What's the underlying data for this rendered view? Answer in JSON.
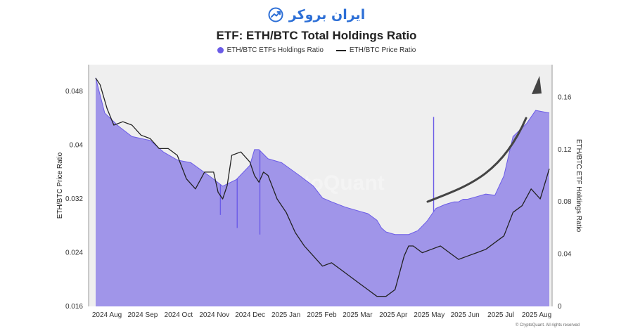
{
  "brand": {
    "name": "ایران بروکر",
    "logo_icon": "chart-arrow-logo-icon"
  },
  "footer": {
    "credit": "© CryptoQuant. All rights reserved"
  },
  "watermark": "CryptoQuant",
  "chart_data": {
    "type": "area",
    "title": "ETF: ETH/BTC Total Holdings Ratio",
    "ylabel_left": "ETH/BTC Price Ratio",
    "ylabel_right": "ETH/BTC ETF Holdings Ratio",
    "ylim_left": [
      0.016,
      0.052
    ],
    "ylim_right": [
      0,
      0.185
    ],
    "yticks_left": [
      "0.016",
      "0.024",
      "0.032",
      "0.04",
      "0.048"
    ],
    "yticks_right": [
      "0",
      "0.04",
      "0.08",
      "0.12",
      "0.16"
    ],
    "xticks": [
      "2024 Aug",
      "2024 Sep",
      "2024 Oct",
      "2024 Nov",
      "2024 Dec",
      "2025 Jan",
      "2025 Feb",
      "2025 Mar",
      "2025 Apr",
      "2025 May",
      "2025 Jun",
      "2025 Jul",
      "2025 Aug"
    ],
    "grid": false,
    "legend_position": "top-center",
    "colors": {
      "holdings": "#6b5ce7",
      "holdings_fill": "#a095e9",
      "price": "#222222",
      "plot_bg": "#efefef",
      "arrow": "#444444"
    },
    "annotation": "upward trend arrow",
    "series": [
      {
        "name": "ETH/BTC ETFs Holdings Ratio",
        "axis": "right",
        "x": [
          0,
          0.02,
          0.05,
          0.08,
          0.12,
          0.15,
          0.18,
          0.21,
          0.25,
          0.28,
          0.31,
          0.34,
          0.35,
          0.36,
          0.38,
          0.41,
          0.45,
          0.48,
          0.5,
          0.52,
          0.55,
          0.58,
          0.6,
          0.62,
          0.63,
          0.64,
          0.66,
          0.69,
          0.71,
          0.73,
          0.75,
          0.77,
          0.79,
          0.8,
          0.81,
          0.82,
          0.84,
          0.86,
          0.88,
          0.9,
          0.92,
          0.95,
          0.97,
          1.0
        ],
        "values": [
          0.175,
          0.148,
          0.138,
          0.13,
          0.127,
          0.118,
          0.112,
          0.11,
          0.1,
          0.092,
          0.097,
          0.108,
          0.12,
          0.12,
          0.113,
          0.11,
          0.1,
          0.092,
          0.083,
          0.08,
          0.076,
          0.073,
          0.071,
          0.066,
          0.06,
          0.057,
          0.055,
          0.055,
          0.058,
          0.065,
          0.075,
          0.078,
          0.08,
          0.08,
          0.082,
          0.082,
          0.084,
          0.086,
          0.085,
          0.1,
          0.13,
          0.14,
          0.15,
          0.148
        ],
        "spikes": [
          {
            "x": 0.275,
            "value": 0.07
          },
          {
            "x": 0.312,
            "value": 0.06
          },
          {
            "x": 0.362,
            "value": 0.055
          },
          {
            "x": 0.67,
            "value": 0.055
          },
          {
            "x": 0.745,
            "value": 0.145
          }
        ]
      },
      {
        "name": "ETH/BTC Price Ratio",
        "axis": "left",
        "x": [
          0,
          0.01,
          0.025,
          0.04,
          0.06,
          0.08,
          0.1,
          0.12,
          0.14,
          0.16,
          0.18,
          0.2,
          0.22,
          0.24,
          0.26,
          0.27,
          0.28,
          0.29,
          0.3,
          0.32,
          0.34,
          0.35,
          0.36,
          0.37,
          0.38,
          0.4,
          0.42,
          0.44,
          0.46,
          0.48,
          0.5,
          0.52,
          0.54,
          0.56,
          0.58,
          0.6,
          0.62,
          0.64,
          0.66,
          0.68,
          0.69,
          0.7,
          0.72,
          0.74,
          0.76,
          0.78,
          0.8,
          0.82,
          0.84,
          0.86,
          0.88,
          0.9,
          0.92,
          0.94,
          0.96,
          0.98,
          1.0
        ],
        "values": [
          0.05,
          0.049,
          0.0455,
          0.043,
          0.0435,
          0.043,
          0.0415,
          0.041,
          0.0395,
          0.0395,
          0.0385,
          0.035,
          0.0335,
          0.036,
          0.036,
          0.033,
          0.032,
          0.034,
          0.0385,
          0.039,
          0.0375,
          0.0355,
          0.0345,
          0.036,
          0.0355,
          0.032,
          0.03,
          0.027,
          0.025,
          0.0235,
          0.022,
          0.0225,
          0.0215,
          0.0205,
          0.0195,
          0.0185,
          0.0175,
          0.0175,
          0.0185,
          0.0235,
          0.025,
          0.025,
          0.024,
          0.0245,
          0.025,
          0.024,
          0.023,
          0.0235,
          0.024,
          0.0245,
          0.0255,
          0.0265,
          0.03,
          0.031,
          0.0335,
          0.032,
          0.0365
        ]
      }
    ]
  }
}
